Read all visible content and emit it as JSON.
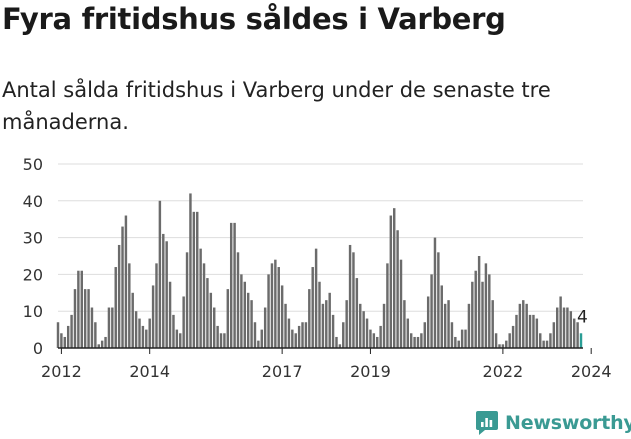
{
  "title": "Fyra fritidshus såldes i Varberg",
  "subtitle": "Antal sålda fritidshus i Varberg under de senaste tre månaderna.",
  "brand": {
    "name": "Newsworthy"
  },
  "colors": {
    "bar": "#6b6b6b",
    "highlight": "#2a9d95",
    "grid": "#dddddd",
    "axis": "#222222",
    "brand": "#3a9a93"
  },
  "chart_data": {
    "type": "bar",
    "title": "Fyra fritidshus såldes i Varberg",
    "xlabel": "",
    "ylabel": "",
    "ylim": [
      0,
      50
    ],
    "yticks": [
      0,
      10,
      20,
      30,
      40,
      50
    ],
    "xtick_labels": [
      "2012",
      "2014",
      "2017",
      "2019",
      "2022",
      "2024"
    ],
    "xtick_index": [
      1,
      27,
      66,
      92,
      131,
      157
    ],
    "start": "2012-01",
    "frequency": "monthly",
    "values": [
      7,
      4,
      3,
      6,
      9,
      16,
      21,
      21,
      16,
      16,
      11,
      7,
      1,
      2,
      3,
      11,
      11,
      22,
      28,
      33,
      36,
      23,
      15,
      10,
      8,
      6,
      5,
      8,
      17,
      23,
      40,
      31,
      29,
      18,
      9,
      5,
      4,
      14,
      26,
      42,
      37,
      37,
      27,
      23,
      19,
      15,
      11,
      6,
      4,
      4,
      16,
      34,
      34,
      26,
      20,
      18,
      15,
      13,
      7,
      2,
      5,
      11,
      20,
      23,
      24,
      22,
      17,
      12,
      8,
      5,
      4,
      6,
      7,
      7,
      16,
      22,
      27,
      18,
      12,
      13,
      15,
      9,
      3,
      1,
      7,
      13,
      28,
      26,
      19,
      12,
      10,
      8,
      5,
      4,
      3,
      6,
      12,
      23,
      36,
      38,
      32,
      24,
      13,
      8,
      4,
      3,
      3,
      4,
      7,
      14,
      20,
      30,
      26,
      17,
      12,
      13,
      7,
      3,
      2,
      5,
      5,
      12,
      18,
      21,
      25,
      18,
      23,
      20,
      13,
      4,
      1,
      1,
      2,
      4,
      6,
      9,
      12,
      13,
      12,
      9,
      9,
      8,
      4,
      2,
      2,
      4,
      7,
      11,
      14,
      11,
      11,
      10,
      8,
      7,
      4
    ],
    "last_label": "4"
  }
}
